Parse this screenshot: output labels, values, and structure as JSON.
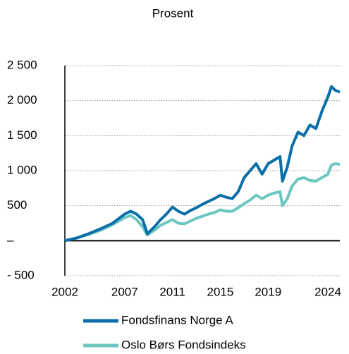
{
  "chart_data": {
    "type": "line",
    "title": "Prosent",
    "x": [
      2002,
      2003,
      2004,
      2005,
      2006,
      2007,
      2007.5,
      2008,
      2008.5,
      2008.9,
      2009.5,
      2010,
      2010.5,
      2011,
      2011.5,
      2012,
      2012.5,
      2013,
      2013.5,
      2014,
      2014.5,
      2015,
      2015.5,
      2016,
      2016.5,
      2017,
      2017.5,
      2018,
      2018.5,
      2019,
      2019.5,
      2020,
      2020.2,
      2020.6,
      2021,
      2021.5,
      2022,
      2022.5,
      2023,
      2023.5,
      2024,
      2024.3,
      2024.6,
      2025
    ],
    "series": [
      {
        "name": "Fondsfinans Norge A",
        "color": "#0a6fa8",
        "values": [
          0,
          40,
          100,
          170,
          250,
          380,
          420,
          380,
          300,
          100,
          200,
          300,
          380,
          480,
          420,
          380,
          430,
          470,
          520,
          560,
          600,
          650,
          620,
          600,
          700,
          900,
          1000,
          1100,
          950,
          1100,
          1150,
          1200,
          850,
          1050,
          1350,
          1550,
          1500,
          1650,
          1600,
          1850,
          2050,
          2200,
          2150,
          2120
        ]
      },
      {
        "name": "Oslo Børs Fondsindeks",
        "color": "#6cc5bf",
        "values": [
          0,
          40,
          90,
          150,
          230,
          330,
          360,
          300,
          200,
          80,
          150,
          220,
          260,
          300,
          250,
          240,
          280,
          320,
          350,
          380,
          400,
          440,
          420,
          420,
          470,
          530,
          580,
          650,
          600,
          650,
          680,
          700,
          500,
          600,
          780,
          880,
          900,
          860,
          850,
          900,
          950,
          1080,
          1100,
          1090
        ]
      }
    ],
    "xlim": [
      2002,
      2025
    ],
    "xticks": [
      2002,
      2007,
      2011,
      2015,
      2019,
      2024
    ],
    "ylim": [
      -500,
      2500
    ],
    "yticks": [
      {
        "value": -500,
        "label": "- 500"
      },
      {
        "value": 0,
        "label": "–"
      },
      500,
      {
        "value": 1000,
        "label": "1 000"
      },
      {
        "value": 1500,
        "label": "1 500"
      },
      {
        "value": 2000,
        "label": "2 000"
      },
      {
        "value": 2500,
        "label": "2 500"
      }
    ],
    "grid": true
  }
}
